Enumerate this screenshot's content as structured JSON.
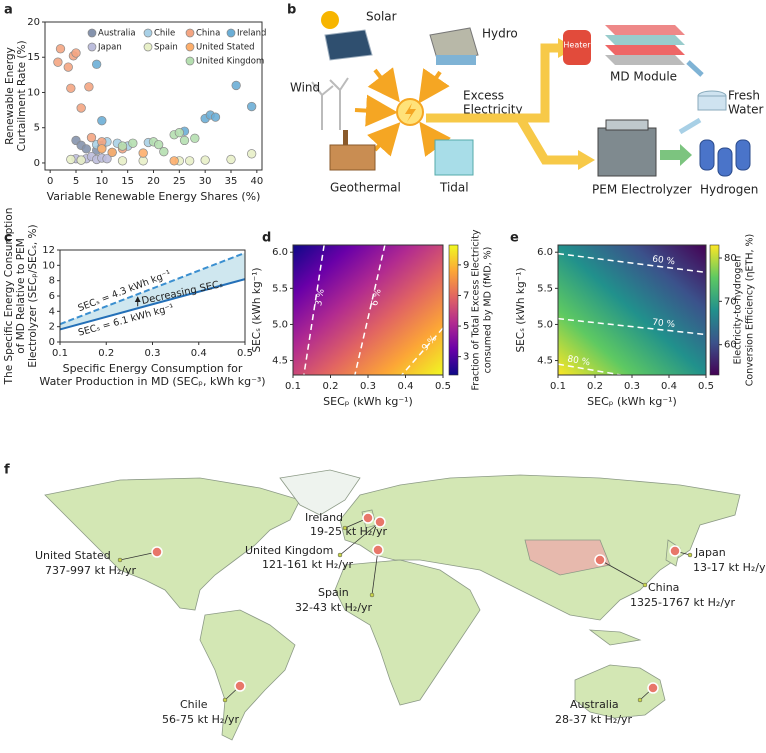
{
  "panel_labels": [
    "a",
    "b",
    "c",
    "d",
    "e",
    "f"
  ],
  "chart_data": [
    {
      "type": "scatter",
      "x_label": [
        "Variable Renewable Energy Shares (%)"
      ],
      "y_label": [
        "Renewable Energy",
        "Curtailment Rate (%)"
      ],
      "xlim": [
        -1,
        41
      ],
      "ylim": [
        -1,
        20
      ],
      "xticks": [
        0,
        5,
        10,
        15,
        20,
        25,
        30,
        35,
        40
      ],
      "yticks": [
        0,
        5,
        10,
        15,
        20
      ],
      "legend": "upper right",
      "series": [
        {
          "name": "Australia",
          "color": "#8593ad",
          "x": [
            5,
            6,
            7,
            9,
            10,
            12
          ],
          "values": [
            3.2,
            2.5,
            2,
            1.8,
            2.5,
            1.5
          ]
        },
        {
          "name": "Chile",
          "color": "#a8d0e6",
          "x": [
            9,
            10,
            11,
            13,
            15,
            19
          ],
          "values": [
            2.6,
            2.2,
            3,
            2.8,
            2.4,
            2.9
          ]
        },
        {
          "name": "China",
          "color": "#f4a582",
          "x": [
            1.5,
            2,
            3.5,
            4.5,
            5,
            4,
            7.5,
            6,
            8,
            10,
            14
          ],
          "values": [
            14.3,
            16.2,
            13.6,
            15.2,
            15.6,
            10.6,
            10.8,
            7.8,
            3.6,
            3,
            2
          ]
        },
        {
          "name": "Ireland",
          "color": "#6baed6",
          "x": [
            9,
            10,
            26,
            30,
            31,
            32,
            36,
            39
          ],
          "values": [
            14,
            6,
            4.5,
            6.3,
            6.8,
            6.5,
            11,
            8
          ]
        },
        {
          "name": "Japan",
          "color": "#bcbddc",
          "x": [
            5,
            6,
            7,
            8,
            9,
            10,
            11
          ],
          "values": [
            0.6,
            0.4,
            0.6,
            0.9,
            0.5,
            0.7,
            0.6
          ]
        },
        {
          "name": "Spain",
          "color": "#e8f0c8",
          "x": [
            4,
            6,
            14,
            18,
            25,
            27,
            30,
            35,
            39
          ],
          "values": [
            0.5,
            0.4,
            0.3,
            0.3,
            0.3,
            0.3,
            0.4,
            0.5,
            1.3
          ]
        },
        {
          "name": "United Stated",
          "color": "#fdae6b",
          "x": [
            10,
            12,
            18,
            24
          ],
          "values": [
            2,
            1.5,
            1.4,
            0.3
          ]
        },
        {
          "name": "United Kingdom",
          "color": "#b5dfb0",
          "x": [
            14,
            16,
            20,
            21,
            22,
            24,
            25,
            26,
            28
          ],
          "values": [
            2.4,
            2.8,
            3,
            2.6,
            1.6,
            4,
            4.3,
            3.2,
            3.5
          ]
        }
      ]
    },
    {
      "type": "line",
      "x_label": [
        "Specific Energy Consumption for",
        "Water Production in MD (SECₚ, kWh kg⁻³)"
      ],
      "y_label": [
        "The Specific Energy Consumption",
        "of MD Relative to PEM",
        "Electrolyzer (SECₚ/SECₛ, %)"
      ],
      "xlim": [
        0.1,
        0.5
      ],
      "ylim": [
        0,
        12
      ],
      "xticks": [
        0.1,
        0.2,
        0.3,
        0.4,
        0.5
      ],
      "yticks": [
        0,
        2,
        4,
        6,
        8,
        10,
        12
      ],
      "fill_color": "#cfe7ef",
      "annotations": [
        "Decreasing SECₛ"
      ],
      "series": [
        {
          "name": "SECₛ = 4.3 kWh kg⁻¹",
          "color": "#3a8fd0",
          "style": "dashed",
          "x": [
            0.1,
            0.5
          ],
          "values": [
            2.33,
            11.63
          ]
        },
        {
          "name": "SECₛ = 6.1 kWh kg⁻¹",
          "color": "#2470b8",
          "style": "solid",
          "x": [
            0.1,
            0.5
          ],
          "values": [
            1.64,
            8.2
          ]
        }
      ]
    },
    {
      "type": "heatmap",
      "x_label": [
        "SECₚ (kWh kg⁻¹)"
      ],
      "y_label": [
        "SECₛ (kWh kg⁻¹)"
      ],
      "xlim": [
        0.1,
        0.5
      ],
      "ylim": [
        4.3,
        6.1
      ],
      "xticks": [
        0.1,
        0.2,
        0.3,
        0.4,
        0.5
      ],
      "yticks": [
        4.5,
        {
          "value": 5,
          "label": "5.0"
        },
        5.5,
        {
          "value": 6,
          "label": "6.0"
        }
      ],
      "colormap": [
        "#0d0887",
        "#6a00a8",
        "#b12a90",
        "#e16462",
        "#fca636",
        "#f0f921"
      ],
      "colorbar": {
        "label": [
          "Fraction of Total Excess Electricity",
          "consumed by MD (fMD, %)"
        ],
        "lim": [
          1.8,
          10.3
        ],
        "ticks": [
          3,
          5,
          7,
          9
        ]
      },
      "contours": [
        {
          "label": "3 %",
          "x": [
            0.183,
            0.129
          ],
          "y": [
            6.1,
            4.3
          ]
        },
        {
          "label": "6 %",
          "x": [
            0.345,
            0.265
          ],
          "y": [
            6.1,
            4.3
          ]
        },
        {
          "label": "9 %",
          "x": [
            0.5,
            0.39
          ],
          "y": [
            4.95,
            4.3
          ]
        }
      ]
    },
    {
      "type": "heatmap",
      "x_label": [
        "SECₚ (kWh kg⁻¹)"
      ],
      "y_label": [
        "SECₛ (kWh kg⁻¹)"
      ],
      "xlim": [
        0.1,
        0.5
      ],
      "ylim": [
        4.3,
        6.1
      ],
      "xticks": [
        0.1,
        0.2,
        0.3,
        0.4,
        0.5
      ],
      "yticks": [
        4.5,
        {
          "value": 5,
          "label": "5.0"
        },
        5.5,
        {
          "value": 6,
          "label": "6.0"
        }
      ],
      "colormap": [
        "#440154",
        "#3b528b",
        "#21918c",
        "#5ec962",
        "#fde725"
      ],
      "colorbar": {
        "label": [
          "Electricity-to-hydrogen",
          "Conversion Efficiency (ηETH, %)"
        ],
        "lim": [
          53,
          83
        ],
        "ticks": [
          60,
          70,
          80
        ]
      },
      "contours": [
        {
          "label": "60 %",
          "x": [
            0.1,
            0.5
          ],
          "y": [
            5.98,
            5.72
          ]
        },
        {
          "label": "70 %",
          "x": [
            0.1,
            0.5
          ],
          "y": [
            5.08,
            4.86
          ]
        },
        {
          "label": "80 %",
          "x": [
            0.1,
            0.27
          ],
          "y": [
            4.45,
            4.3
          ]
        }
      ]
    }
  ],
  "diagram": {
    "solar": "Solar",
    "hydro": "Hydro",
    "wind": "Wind",
    "geothermal": "Geothermal",
    "tidal": "Tidal",
    "excess": [
      "Excess",
      "Electricity"
    ],
    "heater": "Heater",
    "md_module": "MD Module",
    "fresh_water": [
      "Fresh",
      "Water"
    ],
    "electrolyzer": "PEM Electrolyzer",
    "hydrogen": "Hydrogen"
  },
  "map": {
    "locations": [
      {
        "name": "Ireland",
        "value": "19-25 kt H₂/yr"
      },
      {
        "name": "United Kingdom",
        "value": "121-161 kt H₂/yr"
      },
      {
        "name": "United Stated",
        "value": "737-997 kt H₂/yr"
      },
      {
        "name": "Spain",
        "value": "32-43 kt H₂/yr"
      },
      {
        "name": "Japan",
        "value": "13-17 kt H₂/yr"
      },
      {
        "name": "China",
        "value": "1325-1767 kt H₂/yr"
      },
      {
        "name": "Chile",
        "value": "56-75 kt H₂/yr"
      },
      {
        "name": "Australia",
        "value": "28-37 kt H₂/yr"
      }
    ]
  }
}
